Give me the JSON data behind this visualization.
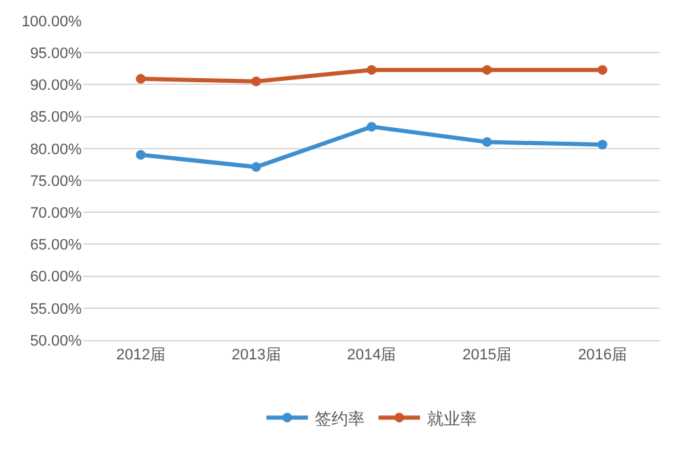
{
  "chart_data": {
    "type": "line",
    "categories": [
      "2012届",
      "2013届",
      "2014届",
      "2015届",
      "2016届"
    ],
    "series": [
      {
        "name": "签约率",
        "color": "#3e8fcf",
        "values": [
          79.0,
          77.1,
          83.4,
          81.0,
          80.6
        ]
      },
      {
        "name": "就业率",
        "color": "#c9582b",
        "values": [
          90.9,
          90.5,
          92.3,
          92.3,
          92.3
        ]
      }
    ],
    "ylim": [
      50,
      100
    ],
    "yticks": [
      {
        "value": 50,
        "label": "50.00%"
      },
      {
        "value": 55,
        "label": "55.00%"
      },
      {
        "value": 60,
        "label": "60.00%"
      },
      {
        "value": 65,
        "label": "65.00%"
      },
      {
        "value": 70,
        "label": "70.00%"
      },
      {
        "value": 75,
        "label": "75.00%"
      },
      {
        "value": 80,
        "label": "80.00%"
      },
      {
        "value": 85,
        "label": "85.00%"
      },
      {
        "value": 90,
        "label": "90.00%"
      },
      {
        "value": 95,
        "label": "95.00%"
      },
      {
        "value": 100,
        "label": "100.00%"
      }
    ],
    "grid": "y",
    "legend": "bottom",
    "marker": "circle",
    "line_style": "solid"
  }
}
